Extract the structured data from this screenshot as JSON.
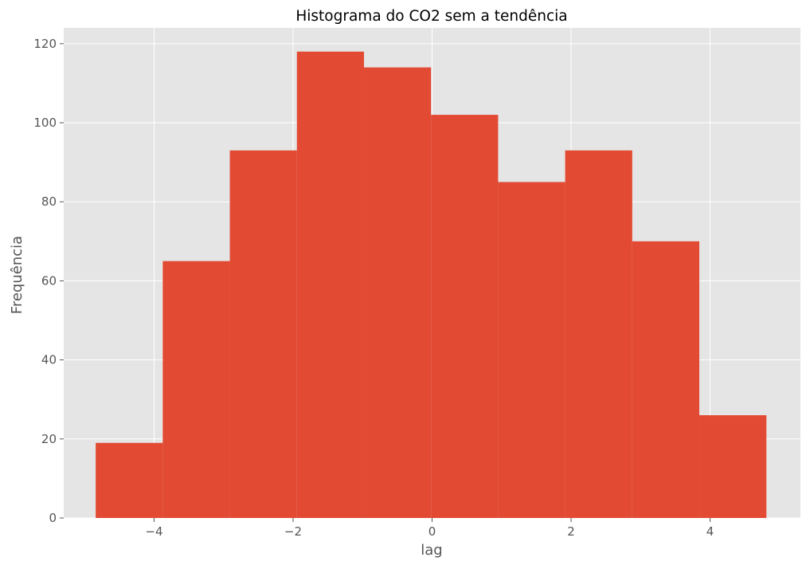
{
  "chart_data": {
    "type": "bar",
    "title": "Histograma do CO2 sem a tendência",
    "xlabel": "lag",
    "ylabel": "Frequência",
    "bins": [
      {
        "x0": -4.84,
        "x1": -3.875,
        "count": 19
      },
      {
        "x0": -3.875,
        "x1": -2.91,
        "count": 65
      },
      {
        "x0": -2.91,
        "x1": -1.945,
        "count": 93
      },
      {
        "x0": -1.945,
        "x1": -0.98,
        "count": 118
      },
      {
        "x0": -0.98,
        "x1": -0.015,
        "count": 114
      },
      {
        "x0": -0.015,
        "x1": 0.95,
        "count": 102
      },
      {
        "x0": 0.95,
        "x1": 1.915,
        "count": 85
      },
      {
        "x0": 1.915,
        "x1": 2.88,
        "count": 93
      },
      {
        "x0": 2.88,
        "x1": 3.845,
        "count": 70
      },
      {
        "x0": 3.845,
        "x1": 4.81,
        "count": 26
      }
    ],
    "xlim": [
      -5.3,
      5.3
    ],
    "ylim": [
      0,
      124
    ],
    "xticks": [
      -4,
      -2,
      0,
      2,
      4
    ],
    "xtick_labels": [
      "−4",
      "−2",
      "0",
      "2",
      "4"
    ],
    "yticks": [
      0,
      20,
      40,
      60,
      80,
      100,
      120
    ],
    "ytick_labels": [
      "0",
      "20",
      "40",
      "60",
      "80",
      "100",
      "120"
    ],
    "grid": true,
    "colors": {
      "bar": "#e24a33",
      "background": "#e5e5e5",
      "grid": "#ffffff"
    }
  }
}
